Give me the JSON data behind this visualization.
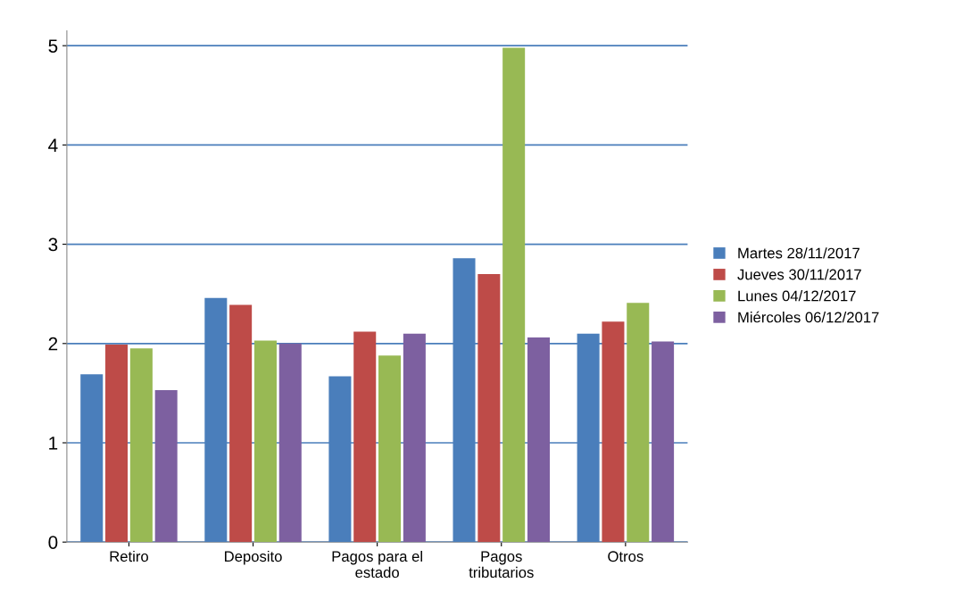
{
  "chart_data": {
    "type": "bar",
    "categories": [
      "Retiro",
      "Deposito",
      "Pagos para el\nestado",
      "Pagos\ntributarios",
      "Otros"
    ],
    "series": [
      {
        "name": "Martes 28/11/2017",
        "color": "#4a7ebb",
        "values": [
          1.69,
          2.46,
          1.67,
          2.86,
          2.1
        ]
      },
      {
        "name": "Jueves 30/11/2017",
        "color": "#be4b48",
        "values": [
          1.99,
          2.39,
          2.12,
          2.7,
          2.22
        ]
      },
      {
        "name": "Lunes 04/12/2017",
        "color": "#98b954",
        "values": [
          1.95,
          2.03,
          1.88,
          4.98,
          2.41
        ]
      },
      {
        "name": "Miércoles 06/12/2017",
        "color": "#7d60a0",
        "values": [
          1.53,
          2.0,
          2.1,
          2.06,
          2.02
        ]
      }
    ],
    "ylim": [
      0,
      5.15
    ],
    "yticks": [
      0,
      1,
      2,
      3,
      4,
      5
    ],
    "grid": "y",
    "legend": "right"
  }
}
